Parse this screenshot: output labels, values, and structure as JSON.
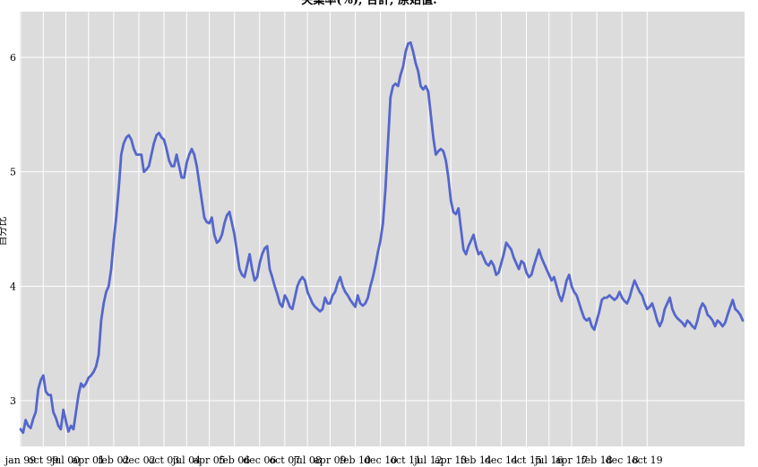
{
  "chart_data": {
    "type": "line",
    "title": "失業率(%), 合計, 原始值.",
    "xlabel": "",
    "ylabel": "百分比",
    "ylim": [
      2.6,
      6.4
    ],
    "yticks": [
      3,
      4,
      5,
      6
    ],
    "grid": true,
    "xtick_labels": [
      "jan 99",
      "oct 99",
      "jul 00",
      "apr 01",
      "feb 02",
      "dec 02",
      "oct 03",
      "jul 04",
      "apr 05",
      "feb 06",
      "dec 06",
      "oct 07",
      "jul 08",
      "apr 09",
      "feb 10",
      "dec 10",
      "oct 11",
      "jul 12",
      "apr 13",
      "feb 14",
      "dec 14",
      "oct 15",
      "jul 16",
      "apr 17",
      "feb 18",
      "dec 18",
      "oct 19"
    ],
    "x_start": "1999-01",
    "x_end": "2019-12",
    "series": [
      {
        "name": "",
        "color": "#5566cc",
        "values": [
          2.75,
          2.72,
          2.83,
          2.78,
          2.76,
          2.84,
          2.9,
          3.1,
          3.18,
          3.22,
          3.08,
          3.05,
          3.05,
          2.9,
          2.85,
          2.78,
          2.75,
          2.92,
          2.82,
          2.73,
          2.78,
          2.75,
          2.9,
          3.05,
          3.15,
          3.12,
          3.15,
          3.2,
          3.22,
          3.25,
          3.3,
          3.4,
          3.7,
          3.85,
          3.95,
          4.0,
          4.15,
          4.4,
          4.6,
          4.85,
          5.15,
          5.25,
          5.3,
          5.32,
          5.28,
          5.2,
          5.15,
          5.15,
          5.15,
          5.0,
          5.02,
          5.05,
          5.15,
          5.25,
          5.32,
          5.34,
          5.3,
          5.28,
          5.2,
          5.1,
          5.05,
          5.05,
          5.15,
          5.05,
          4.95,
          4.95,
          5.08,
          5.15,
          5.2,
          5.15,
          5.05,
          4.9,
          4.75,
          4.6,
          4.56,
          4.55,
          4.6,
          4.45,
          4.38,
          4.4,
          4.45,
          4.55,
          4.62,
          4.65,
          4.55,
          4.45,
          4.3,
          4.15,
          4.1,
          4.08,
          4.18,
          4.28,
          4.15,
          4.05,
          4.08,
          4.2,
          4.28,
          4.33,
          4.35,
          4.15,
          4.08,
          4.0,
          3.93,
          3.85,
          3.82,
          3.92,
          3.88,
          3.82,
          3.8,
          3.9,
          4.0,
          4.05,
          4.08,
          4.05,
          3.95,
          3.9,
          3.85,
          3.82,
          3.8,
          3.78,
          3.8,
          3.9,
          3.85,
          3.85,
          3.92,
          3.95,
          4.03,
          4.08,
          4.0,
          3.95,
          3.92,
          3.88,
          3.85,
          3.82,
          3.92,
          3.85,
          3.83,
          3.85,
          3.9,
          4.0,
          4.08,
          4.18,
          4.3,
          4.4,
          4.55,
          4.85,
          5.25,
          5.65,
          5.75,
          5.77,
          5.75,
          5.85,
          5.92,
          6.05,
          6.12,
          6.13,
          6.05,
          5.95,
          5.88,
          5.75,
          5.72,
          5.75,
          5.7,
          5.5,
          5.3,
          5.15,
          5.18,
          5.2,
          5.18,
          5.1,
          4.95,
          4.75,
          4.65,
          4.63,
          4.68,
          4.5,
          4.32,
          4.28,
          4.35,
          4.4,
          4.45,
          4.35,
          4.28,
          4.3,
          4.25,
          4.2,
          4.18,
          4.22,
          4.18,
          4.1,
          4.12,
          4.2,
          4.28,
          4.38,
          4.35,
          4.32,
          4.25,
          4.2,
          4.15,
          4.22,
          4.2,
          4.12,
          4.08,
          4.1,
          4.18,
          4.25,
          4.32,
          4.25,
          4.2,
          4.15,
          4.1,
          4.05,
          4.08,
          4.0,
          3.92,
          3.87,
          3.95,
          4.05,
          4.1,
          4.0,
          3.95,
          3.92,
          3.85,
          3.78,
          3.72,
          3.7,
          3.72,
          3.65,
          3.62,
          3.7,
          3.78,
          3.88,
          3.9,
          3.9,
          3.92,
          3.9,
          3.88,
          3.9,
          3.95,
          3.9,
          3.87,
          3.85,
          3.9,
          3.98,
          4.05,
          4.0,
          3.95,
          3.92,
          3.85,
          3.8,
          3.82,
          3.85,
          3.78,
          3.7,
          3.65,
          3.7,
          3.8,
          3.85,
          3.9,
          3.8,
          3.75,
          3.72,
          3.7,
          3.68,
          3.65,
          3.7,
          3.68,
          3.65,
          3.63,
          3.7,
          3.8,
          3.85,
          3.82,
          3.75,
          3.73,
          3.7,
          3.65,
          3.7,
          3.68,
          3.65,
          3.68,
          3.75,
          3.82,
          3.88,
          3.8,
          3.78,
          3.75,
          3.7
        ]
      }
    ]
  }
}
